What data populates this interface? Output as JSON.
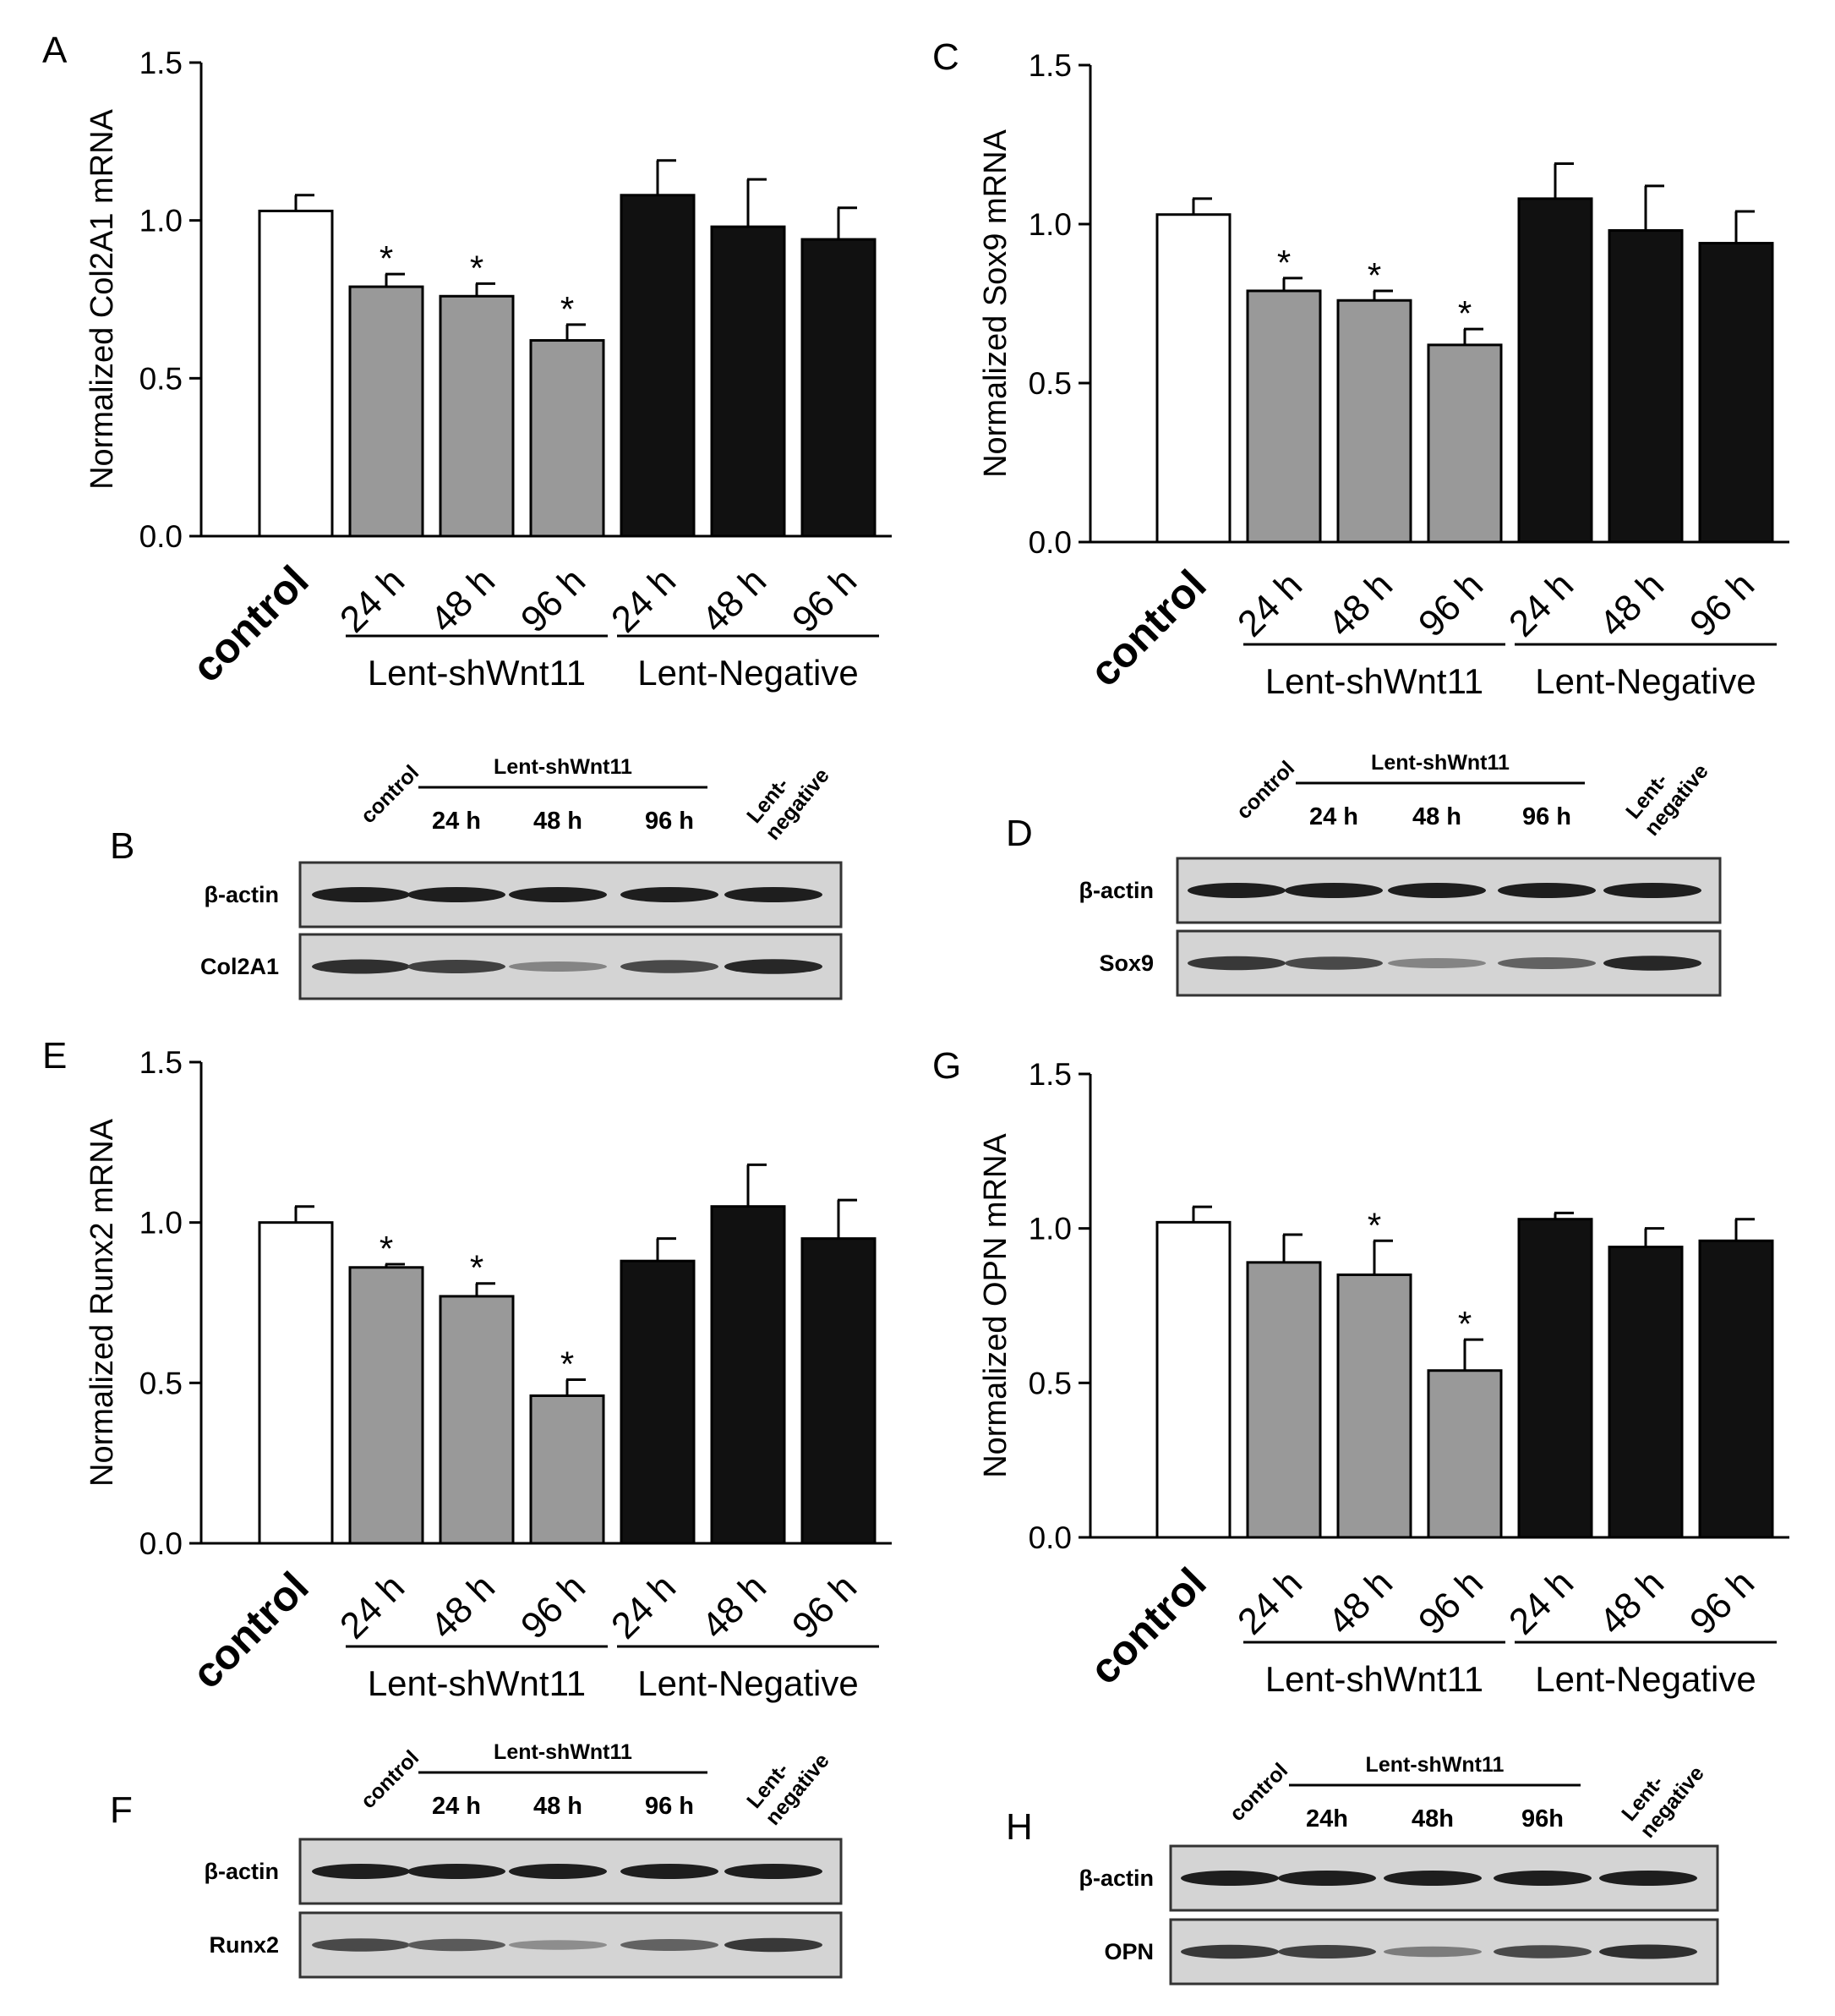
{
  "chart_data": [
    {
      "panel": "A",
      "type": "bar",
      "ylabel": "Normalized Col2A1 mRNA",
      "yticks": [
        "0.0",
        "0.5",
        "1.0",
        "1.5"
      ],
      "ylim": [
        0,
        1.5
      ],
      "categories": [
        "control",
        "24 h",
        "48 h",
        "96 h",
        "24 h",
        "48 h",
        "96 h"
      ],
      "groups": [
        {
          "label": "Lent-shWnt11",
          "from": 1,
          "to": 3
        },
        {
          "label": "Lent-Negative",
          "from": 4,
          "to": 6
        }
      ],
      "values": [
        1.03,
        0.79,
        0.76,
        0.62,
        1.08,
        0.98,
        0.94
      ],
      "errors": [
        0.05,
        0.04,
        0.04,
        0.05,
        0.11,
        0.15,
        0.1
      ],
      "significance": [
        "",
        "*",
        "*",
        "*",
        "",
        "",
        ""
      ],
      "fills": [
        "#ffffff",
        "#999999",
        "#999999",
        "#999999",
        "#111111",
        "#111111",
        "#111111"
      ]
    },
    {
      "panel": "C",
      "type": "bar",
      "ylabel": "Normalized Sox9 mRNA",
      "yticks": [
        "0.0",
        "0.5",
        "1.0",
        "1.5"
      ],
      "ylim": [
        0,
        1.5
      ],
      "categories": [
        "control",
        "24 h",
        "48 h",
        "96 h",
        "24 h",
        "48 h",
        "96 h"
      ],
      "groups": [
        {
          "label": "Lent-shWnt11",
          "from": 1,
          "to": 3
        },
        {
          "label": "Lent-Negative",
          "from": 4,
          "to": 6
        }
      ],
      "values": [
        1.03,
        0.79,
        0.76,
        0.62,
        1.08,
        0.98,
        0.94
      ],
      "errors": [
        0.05,
        0.04,
        0.03,
        0.05,
        0.11,
        0.14,
        0.1
      ],
      "significance": [
        "",
        "*",
        "*",
        "*",
        "",
        "",
        ""
      ],
      "fills": [
        "#ffffff",
        "#999999",
        "#999999",
        "#999999",
        "#111111",
        "#111111",
        "#111111"
      ]
    },
    {
      "panel": "E",
      "type": "bar",
      "ylabel": "Normalized Runx2 mRNA",
      "yticks": [
        "0.0",
        "0.5",
        "1.0",
        "1.5"
      ],
      "ylim": [
        0,
        1.5
      ],
      "categories": [
        "control",
        "24 h",
        "48 h",
        "96 h",
        "24 h",
        "48 h",
        "96 h"
      ],
      "groups": [
        {
          "label": "Lent-shWnt11",
          "from": 1,
          "to": 3
        },
        {
          "label": "Lent-Negative",
          "from": 4,
          "to": 6
        }
      ],
      "values": [
        1.0,
        0.86,
        0.77,
        0.46,
        0.88,
        1.05,
        0.95
      ],
      "errors": [
        0.05,
        0.01,
        0.04,
        0.05,
        0.07,
        0.13,
        0.12
      ],
      "significance": [
        "",
        "*",
        "*",
        "*",
        "",
        "",
        ""
      ],
      "fills": [
        "#ffffff",
        "#999999",
        "#999999",
        "#999999",
        "#111111",
        "#111111",
        "#111111"
      ]
    },
    {
      "panel": "G",
      "type": "bar",
      "ylabel": "Normalized OPN mRNA",
      "yticks": [
        "0.0",
        "0.5",
        "1.0",
        "1.5"
      ],
      "ylim": [
        0,
        1.5
      ],
      "categories": [
        "control",
        "24 h",
        "48 h",
        "96 h",
        "24 h",
        "48 h",
        "96 h"
      ],
      "groups": [
        {
          "label": "Lent-shWnt11",
          "from": 1,
          "to": 3
        },
        {
          "label": "Lent-Negative",
          "from": 4,
          "to": 6
        }
      ],
      "values": [
        1.02,
        0.89,
        0.85,
        0.54,
        1.03,
        0.94,
        0.96
      ],
      "errors": [
        0.05,
        0.09,
        0.11,
        0.1,
        0.02,
        0.06,
        0.07
      ],
      "significance": [
        "",
        "",
        "*",
        "*",
        "",
        "",
        ""
      ],
      "fills": [
        "#ffffff",
        "#999999",
        "#999999",
        "#999999",
        "#111111",
        "#111111",
        "#111111"
      ]
    }
  ],
  "blots": [
    {
      "panel": "B",
      "head_control": "control",
      "head_group": "Lent-shWnt11",
      "times": [
        "24 h",
        "48 h",
        "96 h"
      ],
      "head_negative": [
        "Lent-",
        "negative"
      ],
      "rows": [
        "β-actin",
        "Col2A1"
      ],
      "intensity": [
        [
          1,
          1,
          1,
          1,
          1
        ],
        [
          0.9,
          0.8,
          0.4,
          0.75,
          0.95
        ]
      ]
    },
    {
      "panel": "D",
      "head_control": "control",
      "head_group": "Lent-shWnt11",
      "times": [
        "24 h",
        "48 h",
        "96 h"
      ],
      "head_negative": [
        "Lent-",
        "negative"
      ],
      "rows": [
        "β-actin",
        "Sox9"
      ],
      "intensity": [
        [
          1,
          1,
          1,
          1,
          1
        ],
        [
          0.85,
          0.75,
          0.4,
          0.6,
          0.95
        ]
      ]
    },
    {
      "panel": "F",
      "head_control": "control",
      "head_group": "Lent-shWnt11",
      "times": [
        "24 h",
        "48 h",
        "96 h"
      ],
      "head_negative": [
        "Lent-",
        "negative"
      ],
      "rows": [
        "β-actin",
        "Runx2"
      ],
      "intensity": [
        [
          1,
          1,
          1,
          1,
          1
        ],
        [
          0.75,
          0.65,
          0.35,
          0.6,
          0.85
        ]
      ]
    },
    {
      "panel": "H",
      "head_control": "control",
      "head_group": "Lent-shWnt11",
      "times": [
        "24h",
        "48h",
        "96h"
      ],
      "head_negative": [
        "Lent-",
        "negative"
      ],
      "rows": [
        "β-actin",
        "OPN"
      ],
      "intensity": [
        [
          1,
          1,
          1,
          1,
          1
        ],
        [
          0.85,
          0.8,
          0.45,
          0.75,
          0.9
        ]
      ]
    }
  ]
}
